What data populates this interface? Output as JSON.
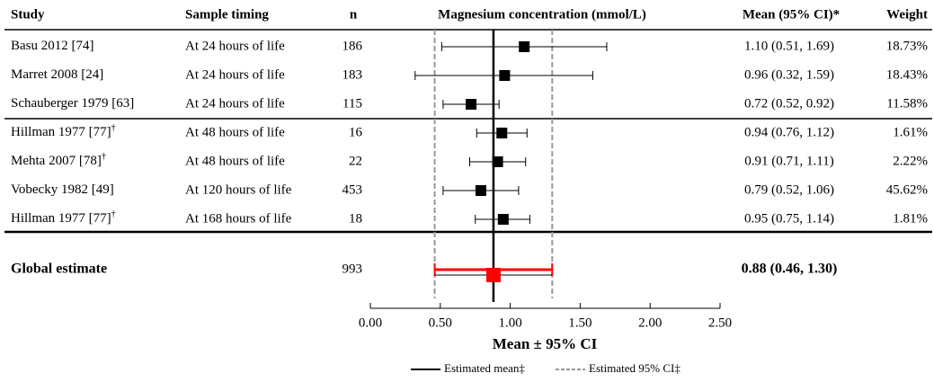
{
  "chart_data": {
    "type": "forest",
    "headers": {
      "study": "Study",
      "timing": "Sample timing",
      "n": "n",
      "plot": "Magnesium concentration (mmol/L)",
      "estimate": "Mean (95% CI)*",
      "weight": "Weight"
    },
    "rows": [
      {
        "study": "Basu 2012 [74]",
        "timing": "At 24 hours of life",
        "n": 186,
        "mean": 1.1,
        "lower": 0.51,
        "upper": 1.69,
        "label": "1.10 (0.51, 1.69)",
        "weight": "18.73%"
      },
      {
        "study": "Marret 2008 [24]",
        "timing": "At 24 hours of life",
        "n": 183,
        "mean": 0.96,
        "lower": 0.32,
        "upper": 1.59,
        "label": "0.96 (0.32, 1.59)",
        "weight": "18.43%"
      },
      {
        "study": "Schauberger 1979 [63]",
        "timing": "At 24 hours of life",
        "n": 115,
        "mean": 0.72,
        "lower": 0.52,
        "upper": 0.92,
        "label": "0.72 (0.52, 0.92)",
        "weight": "11.58%"
      },
      {
        "study": "Hillman 1977 [77]",
        "note": "†",
        "timing": "At 48 hours of life",
        "n": 16,
        "mean": 0.94,
        "lower": 0.76,
        "upper": 1.12,
        "label": "0.94 (0.76, 1.12)",
        "weight": "1.61%"
      },
      {
        "study": "Mehta 2007 [78]",
        "note": "†",
        "timing": "At 48 hours of life",
        "n": 22,
        "mean": 0.91,
        "lower": 0.71,
        "upper": 1.11,
        "label": "0.91 (0.71, 1.11)",
        "weight": "2.22%"
      },
      {
        "study": "Vobecky 1982 [49]",
        "timing": "At 120 hours of life",
        "n": 453,
        "mean": 0.79,
        "lower": 0.52,
        "upper": 1.06,
        "label": "0.79 (0.52, 1.06)",
        "weight": "45.62%"
      },
      {
        "study": "Hillman 1977 [77]",
        "note": "†",
        "timing": "At 168 hours of life",
        "n": 18,
        "mean": 0.95,
        "lower": 0.75,
        "upper": 1.14,
        "label": "0.95 (0.75, 1.14)",
        "weight": "1.81%"
      }
    ],
    "global": {
      "study": "Global estimate",
      "n": 993,
      "mean": 0.88,
      "lower": 0.46,
      "upper": 1.3,
      "label": "0.88 (0.46, 1.30)",
      "color": "#ff0000"
    },
    "xlim": [
      0,
      2.5
    ],
    "xticks": [
      {
        "value": 0,
        "label": "0.00"
      },
      {
        "value": 0.5,
        "label": "0.50"
      },
      {
        "value": 1,
        "label": "1.00"
      },
      {
        "value": 1.5,
        "label": "1.50"
      },
      {
        "value": 2,
        "label": "2.00"
      },
      {
        "value": 2.5,
        "label": "2.50"
      }
    ],
    "xlabel": "Mean ± 95% CI",
    "legend": {
      "mean": "Estimated mean‡",
      "ci": "Estimated 95% CI‡"
    }
  }
}
